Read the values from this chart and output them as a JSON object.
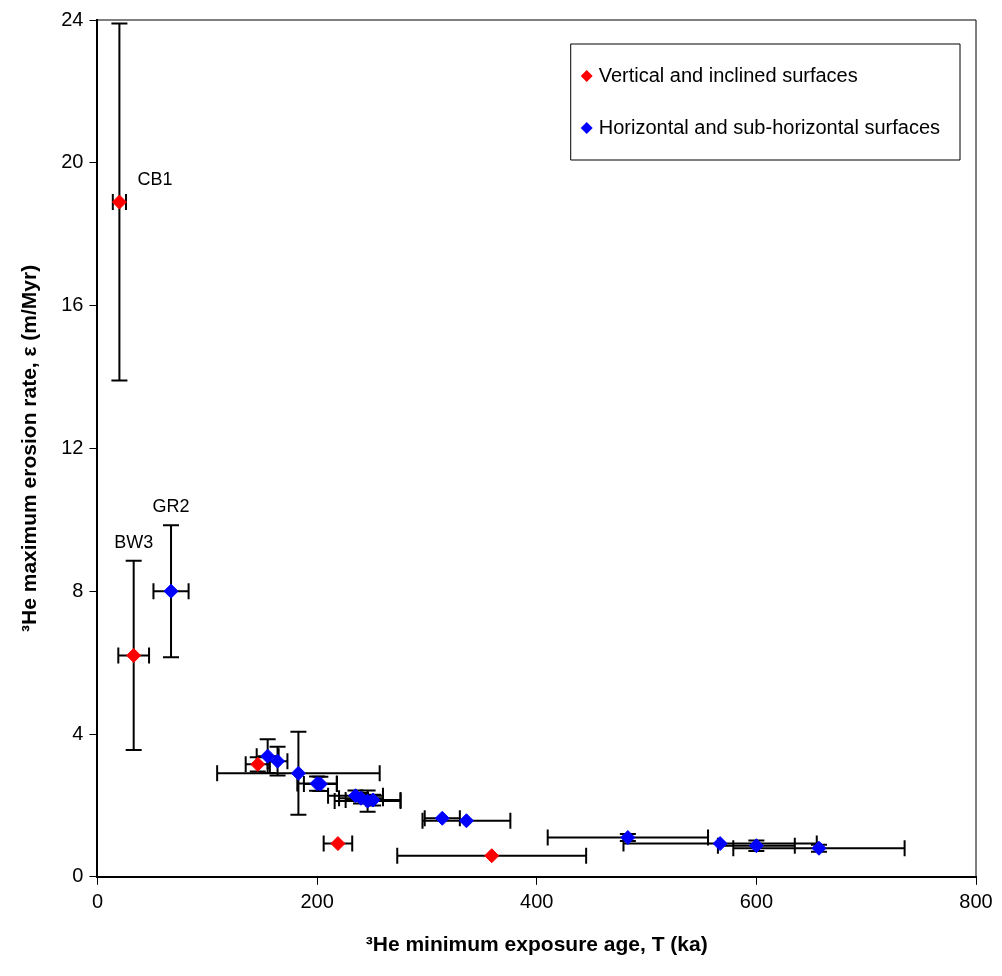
{
  "chart_data": {
    "type": "scatter",
    "xlabel": "³He minimum exposure age, T (ka)",
    "ylabel": "³He maximum erosion rate, ε (m/Myr)",
    "xlim": [
      0,
      800
    ],
    "xticks": [
      0,
      200,
      400,
      600,
      800
    ],
    "ylim": [
      0,
      24
    ],
    "yticks": [
      0,
      4,
      8,
      12,
      16,
      20,
      24
    ],
    "grid": false,
    "legend": "top right",
    "marker": "diamond",
    "series": [
      {
        "name": "Vertical and inclined surfaces",
        "color": "#ff0000",
        "x": [
          20,
          33,
          146,
          219,
          359
        ],
        "values": [
          18.9,
          6.2,
          3.15,
          0.93,
          0.59
        ],
        "errors": [
          5,
          2.65,
          0.2,
          null,
          null
        ],
        "xerrors": [
          6,
          14,
          11,
          13,
          86
        ]
      },
      {
        "name": "Horizontal and sub-horizontal surfaces",
        "color": "#0000ff",
        "x": [
          67,
          155,
          164,
          183,
          200,
          203,
          235,
          240,
          246,
          251,
          314,
          336,
          483,
          567,
          600,
          657
        ],
        "values": [
          8.0,
          3.38,
          3.24,
          2.9,
          2.61,
          2.6,
          2.27,
          2.2,
          2.12,
          2.15,
          1.64,
          1.57,
          1.1,
          0.93,
          0.87,
          0.8
        ],
        "errors": [
          1.85,
          0.47,
          0.4,
          1.16,
          0.2,
          0.2,
          0.15,
          0.15,
          0.3,
          0.15,
          null,
          null,
          0.1,
          null,
          0.15,
          0.1
        ],
        "xerrors": [
          16,
          10,
          9,
          74,
          18,
          15,
          25,
          20,
          30,
          25,
          16,
          40,
          73,
          88,
          35,
          78
        ]
      }
    ],
    "annotations": [
      {
        "text": "CB1",
        "x": 20,
        "y": 18.9
      },
      {
        "text": "BW3",
        "x": 33,
        "y": 8.85
      },
      {
        "text": "GR2",
        "x": 67,
        "y": 9.85
      }
    ]
  }
}
